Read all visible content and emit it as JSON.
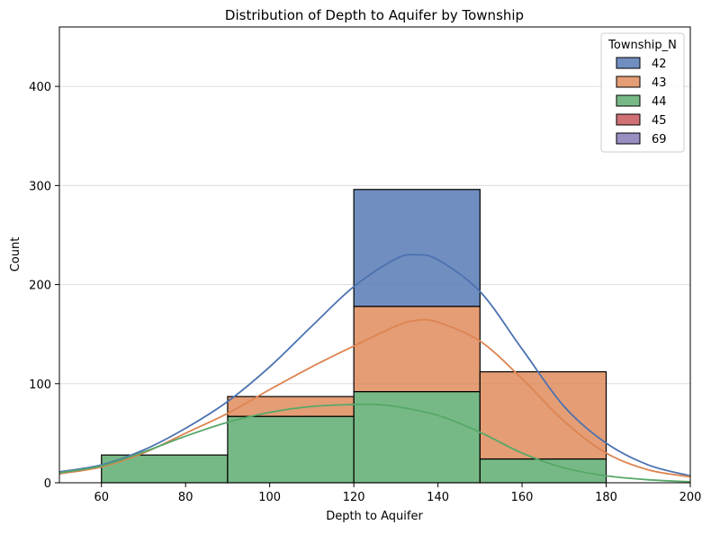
{
  "chart_data": {
    "type": "bar",
    "title": "Distribution of Depth to Aquifer by Township",
    "xlabel": "Depth to Aquifer",
    "ylabel": "Count",
    "xlim": [
      50,
      200
    ],
    "ylim": [
      0,
      460
    ],
    "xticks": [
      60,
      80,
      100,
      120,
      140,
      160,
      180,
      200
    ],
    "yticks": [
      0,
      100,
      200,
      300,
      400
    ],
    "grid": "y",
    "stacked": true,
    "bin_edges": [
      60,
      90,
      120,
      150,
      180
    ],
    "legend": {
      "title": "Township_N",
      "position": "top-right"
    },
    "series": [
      {
        "name": "42",
        "color": "#4c72b0",
        "values": [
          0,
          0,
          118,
          0
        ]
      },
      {
        "name": "43",
        "color": "#dd8452",
        "values": [
          0,
          20,
          86,
          88
        ]
      },
      {
        "name": "44",
        "color": "#55a868",
        "values": [
          28,
          67,
          92,
          24
        ]
      },
      {
        "name": "45",
        "color": "#c44e52",
        "values": [
          0,
          0,
          0,
          0
        ]
      },
      {
        "name": "69",
        "color": "#8172b3",
        "values": [
          0,
          0,
          0,
          0
        ]
      }
    ],
    "kde": [
      {
        "series": "42",
        "color": "#4c72b0",
        "x": [
          50,
          60,
          70,
          80,
          90,
          100,
          110,
          120,
          130,
          135,
          140,
          150,
          160,
          170,
          180,
          190,
          200
        ],
        "y": [
          11,
          18,
          33,
          55,
          82,
          117,
          158,
          198,
          226,
          230,
          225,
          193,
          135,
          77,
          40,
          18,
          7
        ]
      },
      {
        "series": "43",
        "color": "#dd8452",
        "x": [
          50,
          60,
          70,
          80,
          90,
          100,
          110,
          120,
          130,
          135,
          140,
          150,
          160,
          170,
          180,
          190,
          200
        ],
        "y": [
          9,
          16,
          30,
          50,
          70,
          94,
          117,
          138,
          158,
          164,
          162,
          143,
          105,
          62,
          30,
          13,
          6
        ]
      },
      {
        "series": "44",
        "color": "#55a868",
        "x": [
          50,
          60,
          70,
          80,
          90,
          100,
          110,
          120,
          125,
          130,
          140,
          150,
          160,
          170,
          180,
          190,
          200
        ],
        "y": [
          10,
          17,
          31,
          47,
          61,
          71,
          77,
          79,
          79,
          77,
          68,
          51,
          30,
          15,
          7,
          3,
          1
        ]
      }
    ]
  }
}
